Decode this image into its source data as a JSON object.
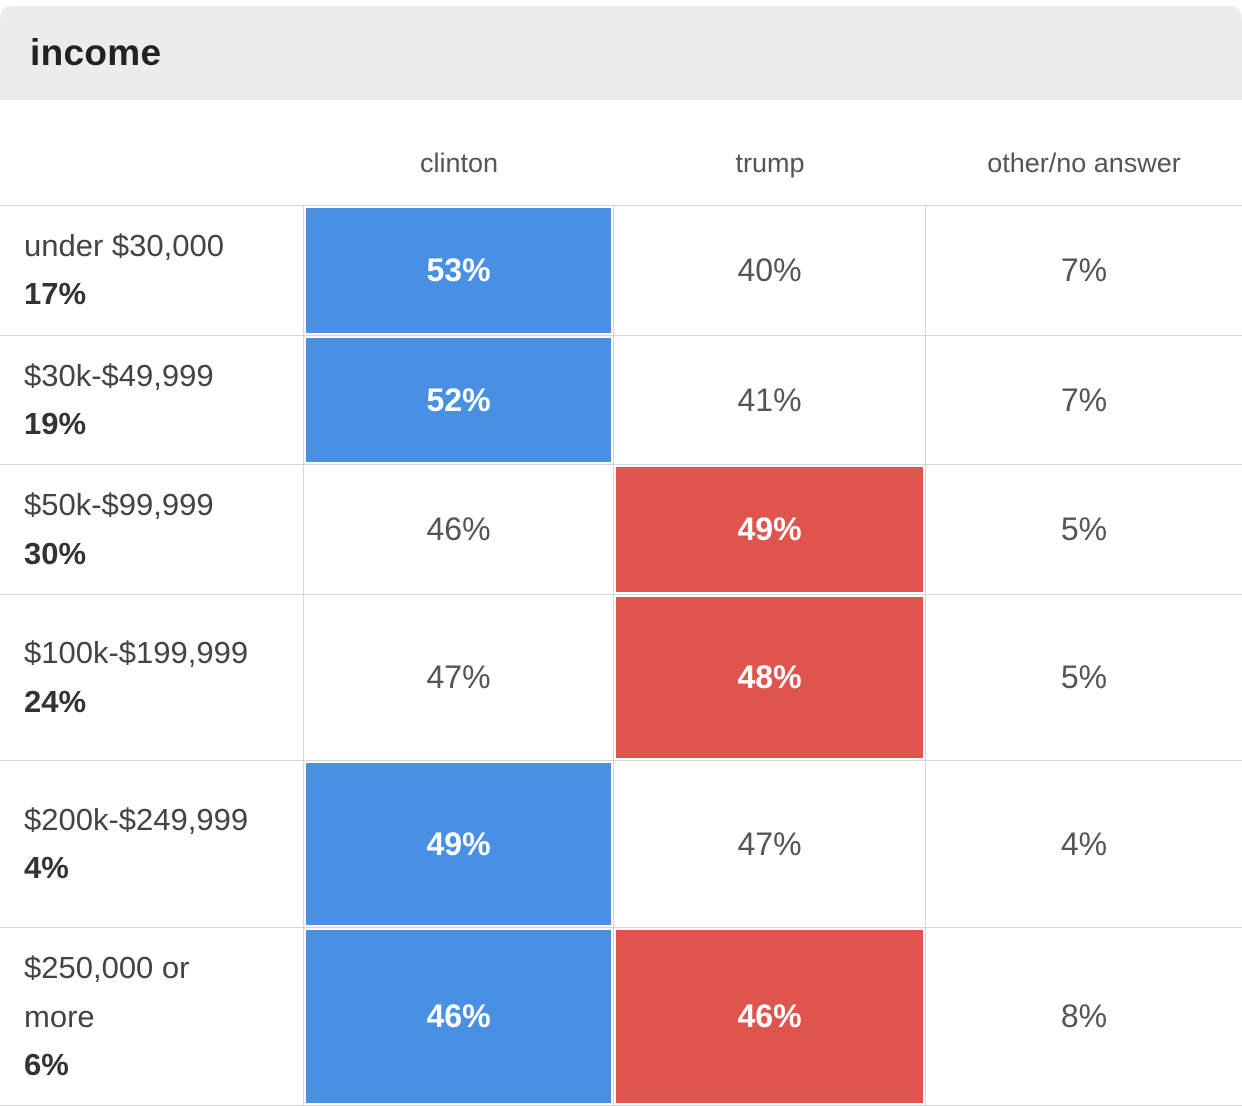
{
  "header": {
    "title": "income"
  },
  "columns": {
    "clinton": "clinton",
    "trump": "trump",
    "other": "other/no answer"
  },
  "colors": {
    "clinton": "#4a90e2",
    "trump": "#e0544e",
    "header_band": "#ececec",
    "border": "#d6d6d6"
  },
  "rows": [
    {
      "label": "under $30,000",
      "share": "17%",
      "clinton": "53%",
      "trump": "40%",
      "other": "7%",
      "clinton_win": true,
      "trump_win": false
    },
    {
      "label": "$30k-$49,999",
      "share": "19%",
      "clinton": "52%",
      "trump": "41%",
      "other": "7%",
      "clinton_win": true,
      "trump_win": false
    },
    {
      "label": "$50k-$99,999",
      "share": "30%",
      "clinton": "46%",
      "trump": "49%",
      "other": "5%",
      "clinton_win": false,
      "trump_win": true
    },
    {
      "label": "$100k-$199,999",
      "share": "24%",
      "clinton": "47%",
      "trump": "48%",
      "other": "5%",
      "clinton_win": false,
      "trump_win": true
    },
    {
      "label": "$200k-$249,999",
      "share": "4%",
      "clinton": "49%",
      "trump": "47%",
      "other": "4%",
      "clinton_win": true,
      "trump_win": false
    },
    {
      "label": "$250,000 or more",
      "share": "6%",
      "clinton": "46%",
      "trump": "46%",
      "other": "8%",
      "clinton_win": true,
      "trump_win": true
    }
  ],
  "chart_data": {
    "type": "table",
    "title": "income",
    "columns": [
      "clinton",
      "trump",
      "other/no answer"
    ],
    "rows": [
      {
        "group": "under $30,000",
        "group_share_pct": 17,
        "clinton_pct": 53,
        "trump_pct": 40,
        "other_pct": 7,
        "leader": "clinton"
      },
      {
        "group": "$30k-$49,999",
        "group_share_pct": 19,
        "clinton_pct": 52,
        "trump_pct": 41,
        "other_pct": 7,
        "leader": "clinton"
      },
      {
        "group": "$50k-$99,999",
        "group_share_pct": 30,
        "clinton_pct": 46,
        "trump_pct": 49,
        "other_pct": 5,
        "leader": "trump"
      },
      {
        "group": "$100k-$199,999",
        "group_share_pct": 24,
        "clinton_pct": 47,
        "trump_pct": 48,
        "other_pct": 5,
        "leader": "trump"
      },
      {
        "group": "$200k-$249,999",
        "group_share_pct": 4,
        "clinton_pct": 49,
        "trump_pct": 47,
        "other_pct": 4,
        "leader": "clinton"
      },
      {
        "group": "$250,000 or more",
        "group_share_pct": 6,
        "clinton_pct": 46,
        "trump_pct": 46,
        "other_pct": 8,
        "leader": "tie"
      }
    ],
    "highlight_colors": {
      "clinton": "#4a90e2",
      "trump": "#e0544e"
    },
    "legend_position": "none",
    "grid": true
  }
}
